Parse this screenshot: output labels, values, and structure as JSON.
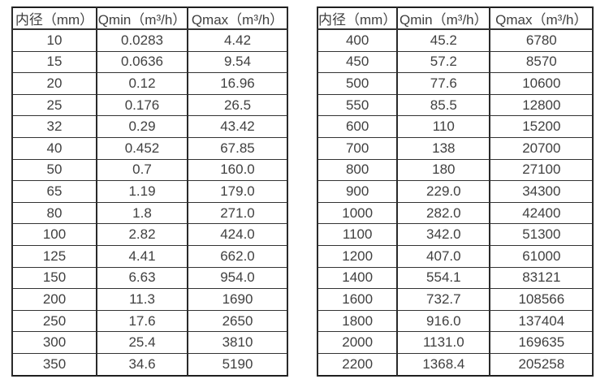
{
  "colors": {
    "background": "#ffffff",
    "text": "#404040",
    "border": "#1e1e1e"
  },
  "tables": [
    {
      "name": "small-diameter-flow-spec",
      "headers": [
        "内径（mm）",
        "Qmin（m³/h）",
        "Qmax（m³/h）"
      ],
      "rows": [
        [
          "10",
          "0.0283",
          "4.42"
        ],
        [
          "15",
          "0.0636",
          "9.54"
        ],
        [
          "20",
          "0.12",
          "16.96"
        ],
        [
          "25",
          "0.176",
          "26.5"
        ],
        [
          "32",
          "0.29",
          "43.42"
        ],
        [
          "40",
          "0.452",
          "67.85"
        ],
        [
          "50",
          "0.7",
          "160.0"
        ],
        [
          "65",
          "1.19",
          "179.0"
        ],
        [
          "80",
          "1.8",
          "271.0"
        ],
        [
          "100",
          "2.82",
          "424.0"
        ],
        [
          "125",
          "4.41",
          "662.0"
        ],
        [
          "150",
          "6.63",
          "954.0"
        ],
        [
          "200",
          "11.3",
          "1690"
        ],
        [
          "250",
          "17.6",
          "2650"
        ],
        [
          "300",
          "25.4",
          "3810"
        ],
        [
          "350",
          "34.6",
          "5190"
        ]
      ]
    },
    {
      "name": "large-diameter-flow-spec",
      "headers": [
        "内径（mm）",
        "Qmin（m³/h）",
        "Qmax（m³/h）"
      ],
      "rows": [
        [
          "400",
          "45.2",
          "6780"
        ],
        [
          "450",
          "57.2",
          "8570"
        ],
        [
          "500",
          "77.6",
          "10600"
        ],
        [
          "550",
          "85.5",
          "12800"
        ],
        [
          "600",
          "110",
          "15200"
        ],
        [
          "700",
          "138",
          "20700"
        ],
        [
          "800",
          "180",
          "27100"
        ],
        [
          "900",
          "229.0",
          "34300"
        ],
        [
          "1000",
          "282.0",
          "42400"
        ],
        [
          "1100",
          "342.0",
          "51300"
        ],
        [
          "1200",
          "407.0",
          "61000"
        ],
        [
          "1400",
          "554.1",
          "83121"
        ],
        [
          "1600",
          "732.7",
          "108566"
        ],
        [
          "1800",
          "916.0",
          "137404"
        ],
        [
          "2000",
          "1131.0",
          "169635"
        ],
        [
          "2200",
          "1368.4",
          "205258"
        ]
      ]
    }
  ]
}
